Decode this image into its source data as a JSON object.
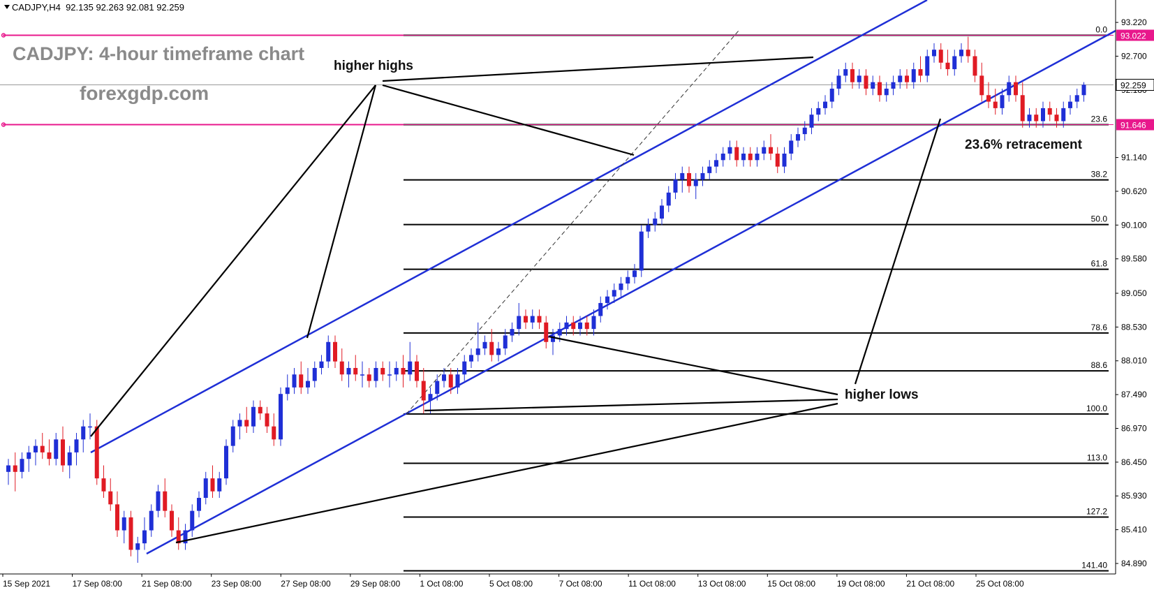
{
  "header": {
    "symbol": "CADJPY,H4",
    "ohlc": "92.135 92.263 92.081 92.259"
  },
  "annotations": {
    "title": "CADJPY: 4-hour timeframe chart",
    "site": "forexgdp.com",
    "higher_highs": "higher highs",
    "higher_lows": "higher lows",
    "retracement": "23.6% retracement"
  },
  "colors": {
    "bull": "#1f2fd6",
    "bear": "#e01b24",
    "channel": "#1f2fd6",
    "pink_line": "#e8188c",
    "price_tag_bg": "#ffffff"
  },
  "chart_data": {
    "type": "candlestick",
    "symbol": "CADJPY",
    "timeframe": "H4",
    "ylim": [
      84.75,
      93.35
    ],
    "y_ticks": [
      "93.220",
      "92.700",
      "92.180",
      "91.140",
      "90.620",
      "90.100",
      "89.580",
      "89.050",
      "88.530",
      "88.010",
      "87.490",
      "86.970",
      "86.450",
      "85.930",
      "85.410",
      "84.890"
    ],
    "x_tick_labels": [
      "15 Sep 2021",
      "17 Sep 08:00",
      "21 Sep 08:00",
      "23 Sep 08:00",
      "27 Sep 08:00",
      "29 Sep 08:00",
      "1 Oct 08:00",
      "5 Oct 08:00",
      "7 Oct 08:00",
      "11 Oct 08:00",
      "13 Oct 08:00",
      "15 Oct 08:00",
      "19 Oct 08:00",
      "21 Oct 08:00",
      "25 Oct 08:00"
    ],
    "current_price": {
      "value": 92.259,
      "label": "92.259"
    },
    "horizontal_levels": [
      {
        "value": 93.022,
        "label": "93.022"
      },
      {
        "value": 91.646,
        "label": "91.646"
      }
    ],
    "fibonacci": {
      "high": 93.022,
      "low": 87.191,
      "levels": [
        {
          "label": "0.0",
          "value": 93.022
        },
        {
          "label": "23.6",
          "value": 91.646
        },
        {
          "label": "38.2",
          "value": 90.795
        },
        {
          "label": "50.0",
          "value": 90.107
        },
        {
          "label": "61.8",
          "value": 89.419
        },
        {
          "label": "78.6",
          "value": 88.439
        },
        {
          "label": "88.6",
          "value": 87.856
        },
        {
          "label": "100.0",
          "value": 87.191
        },
        {
          "label": "113.0",
          "value": 86.433
        },
        {
          "label": "127.2",
          "value": 85.605
        },
        {
          "label": "141.40",
          "value": 84.777
        }
      ]
    },
    "candles": [
      [
        86.3,
        86.5,
        86.1,
        86.4
      ],
      [
        86.4,
        86.6,
        86.0,
        86.3
      ],
      [
        86.3,
        86.6,
        86.2,
        86.5
      ],
      [
        86.5,
        86.7,
        86.3,
        86.6
      ],
      [
        86.6,
        86.8,
        86.4,
        86.7
      ],
      [
        86.7,
        86.9,
        86.5,
        86.6
      ],
      [
        86.6,
        86.8,
        86.4,
        86.5
      ],
      [
        86.5,
        86.9,
        86.4,
        86.8
      ],
      [
        86.8,
        87.0,
        86.3,
        86.4
      ],
      [
        86.4,
        86.7,
        86.2,
        86.6
      ],
      [
        86.6,
        86.9,
        86.4,
        86.8
      ],
      [
        86.8,
        87.1,
        86.6,
        87.0
      ],
      [
        87.0,
        87.2,
        86.8,
        87.0
      ],
      [
        87.0,
        87.1,
        86.1,
        86.2
      ],
      [
        86.2,
        86.4,
        85.9,
        86.0
      ],
      [
        86.0,
        86.2,
        85.7,
        85.8
      ],
      [
        85.8,
        86.0,
        85.3,
        85.4
      ],
      [
        85.4,
        85.7,
        85.2,
        85.6
      ],
      [
        85.6,
        85.7,
        85.0,
        85.1
      ],
      [
        85.1,
        85.3,
        84.9,
        85.2
      ],
      [
        85.2,
        85.6,
        85.1,
        85.4
      ],
      [
        85.4,
        85.8,
        85.3,
        85.7
      ],
      [
        85.7,
        86.1,
        85.6,
        86.0
      ],
      [
        86.0,
        86.2,
        85.6,
        85.7
      ],
      [
        85.7,
        85.8,
        85.3,
        85.4
      ],
      [
        85.4,
        85.6,
        85.1,
        85.2
      ],
      [
        85.2,
        85.5,
        85.1,
        85.4
      ],
      [
        85.4,
        85.8,
        85.3,
        85.7
      ],
      [
        85.7,
        86.0,
        85.6,
        85.9
      ],
      [
        85.9,
        86.3,
        85.8,
        86.2
      ],
      [
        86.2,
        86.4,
        85.9,
        86.0
      ],
      [
        86.0,
        86.3,
        85.9,
        86.2
      ],
      [
        86.2,
        86.8,
        86.1,
        86.7
      ],
      [
        86.7,
        87.1,
        86.6,
        87.0
      ],
      [
        87.0,
        87.2,
        86.8,
        87.1
      ],
      [
        87.1,
        87.3,
        86.9,
        87.0
      ],
      [
        87.0,
        87.4,
        86.9,
        87.3
      ],
      [
        87.3,
        87.4,
        87.1,
        87.2
      ],
      [
        87.2,
        87.3,
        86.9,
        87.0
      ],
      [
        87.0,
        87.2,
        86.7,
        86.8
      ],
      [
        86.8,
        87.6,
        86.7,
        87.5
      ],
      [
        87.5,
        87.8,
        87.4,
        87.6
      ],
      [
        87.6,
        87.9,
        87.5,
        87.8
      ],
      [
        87.8,
        88.0,
        87.5,
        87.6
      ],
      [
        87.6,
        87.9,
        87.5,
        87.7
      ],
      [
        87.7,
        88.0,
        87.6,
        87.9
      ],
      [
        87.9,
        88.1,
        87.8,
        88.0
      ],
      [
        88.0,
        88.4,
        87.9,
        88.3
      ],
      [
        88.3,
        88.4,
        87.9,
        88.0
      ],
      [
        88.0,
        88.2,
        87.7,
        87.8
      ],
      [
        87.8,
        88.0,
        87.6,
        87.9
      ],
      [
        87.9,
        88.1,
        87.7,
        87.8
      ],
      [
        87.8,
        88.0,
        87.6,
        87.8
      ],
      [
        87.8,
        87.9,
        87.6,
        87.7
      ],
      [
        87.7,
        88.0,
        87.6,
        87.9
      ],
      [
        87.9,
        88.0,
        87.7,
        87.8
      ],
      [
        87.8,
        88.0,
        87.6,
        87.8
      ],
      [
        87.8,
        88.0,
        87.7,
        87.9
      ],
      [
        87.9,
        88.1,
        87.6,
        87.8
      ],
      [
        87.8,
        88.3,
        87.7,
        88.0
      ],
      [
        88.0,
        88.1,
        87.6,
        87.7
      ],
      [
        87.7,
        87.9,
        87.2,
        87.4
      ],
      [
        87.4,
        87.6,
        87.2,
        87.5
      ],
      [
        87.5,
        87.8,
        87.4,
        87.7
      ],
      [
        87.7,
        87.9,
        87.6,
        87.8
      ],
      [
        87.8,
        87.9,
        87.5,
        87.6
      ],
      [
        87.6,
        87.9,
        87.5,
        87.8
      ],
      [
        87.8,
        88.1,
        87.7,
        88.0
      ],
      [
        88.0,
        88.2,
        87.9,
        88.1
      ],
      [
        88.1,
        88.6,
        88.0,
        88.2
      ],
      [
        88.2,
        88.4,
        88.1,
        88.3
      ],
      [
        88.3,
        88.5,
        88.0,
        88.1
      ],
      [
        88.1,
        88.3,
        88.0,
        88.2
      ],
      [
        88.2,
        88.5,
        88.1,
        88.4
      ],
      [
        88.4,
        88.6,
        88.3,
        88.5
      ],
      [
        88.5,
        88.9,
        88.4,
        88.7
      ],
      [
        88.7,
        88.8,
        88.5,
        88.6
      ],
      [
        88.6,
        88.8,
        88.5,
        88.7
      ],
      [
        88.7,
        88.8,
        88.5,
        88.6
      ],
      [
        88.6,
        88.7,
        88.2,
        88.3
      ],
      [
        88.3,
        88.5,
        88.1,
        88.4
      ],
      [
        88.4,
        88.6,
        88.3,
        88.5
      ],
      [
        88.5,
        88.7,
        88.4,
        88.6
      ],
      [
        88.6,
        88.7,
        88.4,
        88.5
      ],
      [
        88.5,
        88.7,
        88.4,
        88.6
      ],
      [
        88.6,
        88.7,
        88.4,
        88.5
      ],
      [
        88.5,
        88.8,
        88.4,
        88.7
      ],
      [
        88.7,
        89.0,
        88.6,
        88.9
      ],
      [
        88.9,
        89.1,
        88.8,
        89.0
      ],
      [
        89.0,
        89.2,
        88.9,
        89.1
      ],
      [
        89.1,
        89.3,
        89.0,
        89.2
      ],
      [
        89.2,
        89.4,
        89.1,
        89.3
      ],
      [
        89.3,
        89.5,
        89.2,
        89.4
      ],
      [
        89.4,
        90.1,
        89.3,
        90.0
      ],
      [
        90.0,
        90.2,
        89.9,
        90.1
      ],
      [
        90.1,
        90.3,
        90.0,
        90.2
      ],
      [
        90.2,
        90.5,
        90.1,
        90.4
      ],
      [
        90.4,
        90.7,
        90.3,
        90.6
      ],
      [
        90.6,
        90.9,
        90.5,
        90.8
      ],
      [
        90.8,
        91.0,
        90.6,
        90.9
      ],
      [
        90.9,
        91.0,
        90.6,
        90.7
      ],
      [
        90.7,
        90.9,
        90.5,
        90.8
      ],
      [
        90.8,
        91.0,
        90.7,
        90.9
      ],
      [
        90.9,
        91.1,
        90.8,
        91.0
      ],
      [
        91.0,
        91.2,
        90.9,
        91.1
      ],
      [
        91.1,
        91.3,
        91.0,
        91.2
      ],
      [
        91.2,
        91.4,
        91.1,
        91.3
      ],
      [
        91.3,
        91.4,
        91.0,
        91.1
      ],
      [
        91.1,
        91.3,
        91.0,
        91.2
      ],
      [
        91.2,
        91.3,
        91.0,
        91.1
      ],
      [
        91.1,
        91.3,
        91.0,
        91.2
      ],
      [
        91.2,
        91.4,
        91.1,
        91.3
      ],
      [
        91.3,
        91.5,
        91.1,
        91.2
      ],
      [
        91.2,
        91.3,
        90.9,
        91.0
      ],
      [
        91.0,
        91.3,
        90.9,
        91.2
      ],
      [
        91.2,
        91.5,
        91.1,
        91.4
      ],
      [
        91.4,
        91.6,
        91.3,
        91.5
      ],
      [
        91.5,
        91.7,
        91.4,
        91.6
      ],
      [
        91.6,
        91.9,
        91.5,
        91.8
      ],
      [
        91.8,
        92.0,
        91.7,
        91.9
      ],
      [
        91.9,
        92.1,
        91.8,
        92.0
      ],
      [
        92.0,
        92.3,
        91.9,
        92.2
      ],
      [
        92.2,
        92.5,
        92.1,
        92.4
      ],
      [
        92.4,
        92.6,
        92.3,
        92.5
      ],
      [
        92.5,
        92.6,
        92.2,
        92.3
      ],
      [
        92.3,
        92.5,
        92.2,
        92.4
      ],
      [
        92.4,
        92.5,
        92.1,
        92.2
      ],
      [
        92.2,
        92.4,
        92.1,
        92.3
      ],
      [
        92.3,
        92.4,
        92.0,
        92.1
      ],
      [
        92.1,
        92.3,
        92.0,
        92.2
      ],
      [
        92.2,
        92.4,
        92.1,
        92.3
      ],
      [
        92.3,
        92.5,
        92.2,
        92.4
      ],
      [
        92.4,
        92.5,
        92.2,
        92.3
      ],
      [
        92.3,
        92.6,
        92.2,
        92.5
      ],
      [
        92.5,
        92.7,
        92.3,
        92.4
      ],
      [
        92.4,
        92.8,
        92.3,
        92.7
      ],
      [
        92.7,
        92.9,
        92.6,
        92.8
      ],
      [
        92.8,
        92.9,
        92.5,
        92.6
      ],
      [
        92.6,
        92.8,
        92.4,
        92.5
      ],
      [
        92.5,
        92.8,
        92.4,
        92.7
      ],
      [
        92.7,
        92.9,
        92.6,
        92.8
      ],
      [
        92.8,
        93.0,
        92.6,
        92.7
      ],
      [
        92.7,
        92.8,
        92.3,
        92.4
      ],
      [
        92.4,
        92.6,
        92.0,
        92.1
      ],
      [
        92.1,
        92.3,
        91.9,
        92.0
      ],
      [
        92.0,
        92.2,
        91.8,
        91.9
      ],
      [
        91.9,
        92.2,
        91.8,
        92.1
      ],
      [
        92.1,
        92.4,
        92.0,
        92.3
      ],
      [
        92.3,
        92.4,
        92.0,
        92.1
      ],
      [
        92.1,
        92.3,
        91.6,
        91.7
      ],
      [
        91.7,
        91.9,
        91.6,
        91.8
      ],
      [
        91.8,
        91.9,
        91.6,
        91.7
      ],
      [
        91.7,
        92.0,
        91.6,
        91.9
      ],
      [
        91.9,
        92.0,
        91.7,
        91.8
      ],
      [
        91.8,
        91.9,
        91.6,
        91.7
      ],
      [
        91.7,
        92.0,
        91.6,
        91.9
      ],
      [
        91.9,
        92.1,
        91.8,
        92.0
      ],
      [
        92.0,
        92.2,
        91.9,
        92.1
      ],
      [
        92.1,
        92.3,
        92.0,
        92.26
      ]
    ]
  }
}
